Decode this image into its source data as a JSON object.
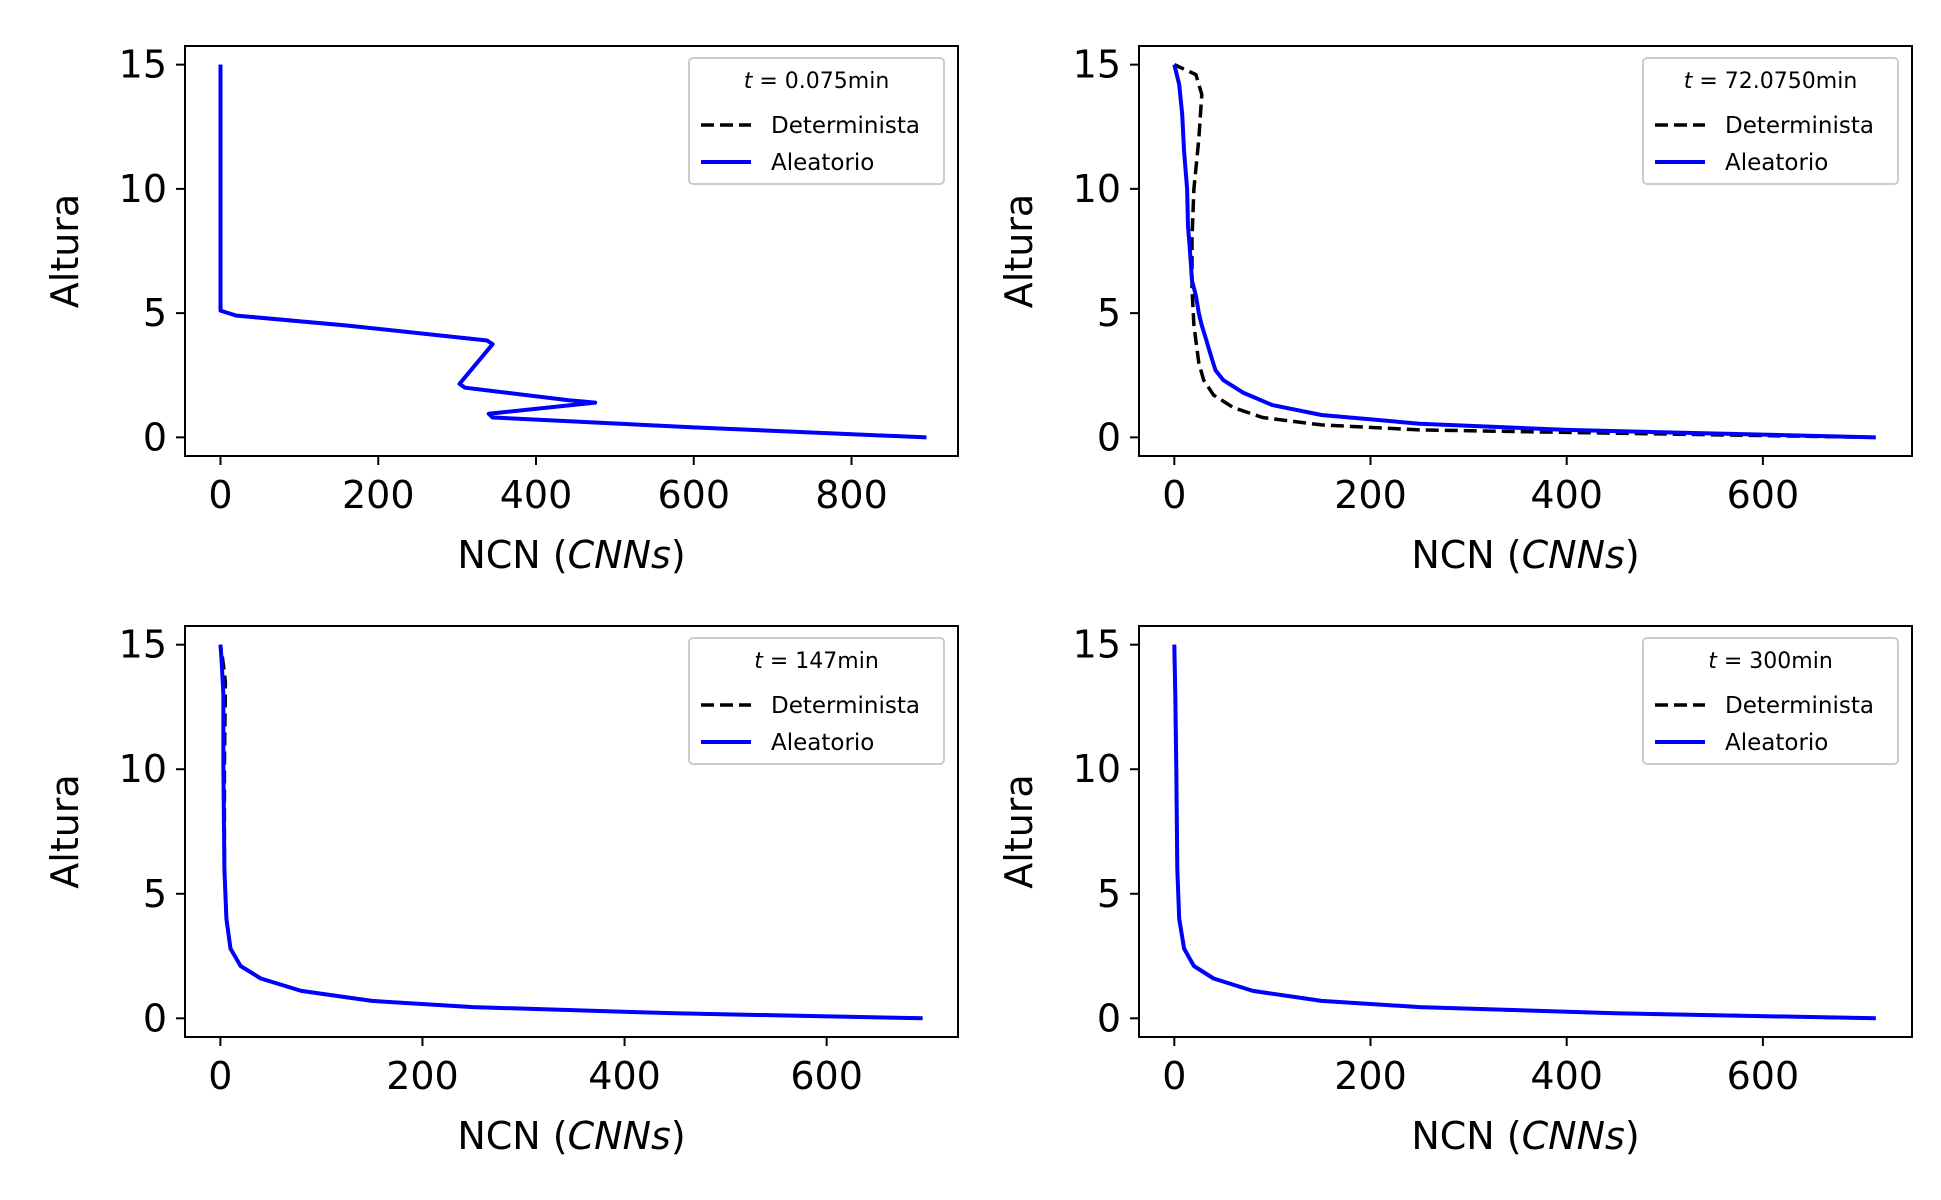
{
  "chart_data": [
    {
      "type": "line",
      "xlabel": "NCN",
      "xlabel_unit": "CNNs",
      "ylabel": "Altura",
      "xlim": [
        -45,
        935
      ],
      "ylim": [
        -0.75,
        15.75
      ],
      "xticks": [
        0,
        200,
        400,
        600,
        800
      ],
      "yticks": [
        0,
        5,
        10,
        15
      ],
      "legend": {
        "title_var": "t",
        "title_rest": " = 0.075min",
        "placement": "top-right"
      },
      "series": [
        {
          "name": "Determinista",
          "color": "#000000",
          "style": "dashed",
          "points": [
            [
              895,
              0
            ],
            [
              600,
              0.4
            ],
            [
              345,
              0.8
            ],
            [
              340,
              0.95
            ],
            [
              475,
              1.4
            ],
            [
              440,
              1.5
            ],
            [
              310,
              2.0
            ],
            [
              303,
              2.15
            ],
            [
              345,
              3.75
            ],
            [
              338,
              3.9
            ],
            [
              160,
              4.5
            ],
            [
              20,
              4.9
            ],
            [
              0,
              5.1
            ],
            [
              0,
              6
            ],
            [
              0,
              10
            ],
            [
              0,
              15
            ]
          ]
        },
        {
          "name": "Aleatorio",
          "color": "#0000ff",
          "style": "solid",
          "points": [
            [
              895,
              0
            ],
            [
              600,
              0.4
            ],
            [
              345,
              0.8
            ],
            [
              340,
              0.95
            ],
            [
              475,
              1.4
            ],
            [
              440,
              1.5
            ],
            [
              310,
              2.0
            ],
            [
              303,
              2.15
            ],
            [
              345,
              3.75
            ],
            [
              338,
              3.9
            ],
            [
              160,
              4.5
            ],
            [
              20,
              4.9
            ],
            [
              0,
              5.1
            ],
            [
              0,
              6
            ],
            [
              0,
              10
            ],
            [
              0,
              15
            ]
          ]
        }
      ]
    },
    {
      "type": "line",
      "xlabel": "NCN",
      "xlabel_unit": "CNNs",
      "ylabel": "Altura",
      "xlim": [
        -36,
        752
      ],
      "ylim": [
        -0.75,
        15.75
      ],
      "xticks": [
        0,
        200,
        400,
        600
      ],
      "yticks": [
        0,
        5,
        10,
        15
      ],
      "legend": {
        "title_var": "t",
        "title_rest": " = 72.0750min",
        "placement": "top-right"
      },
      "series": [
        {
          "name": "Determinista",
          "color": "#000000",
          "style": "dashed",
          "points": [
            [
              715,
              0
            ],
            [
              400,
              0.2
            ],
            [
              250,
              0.3
            ],
            [
              150,
              0.5
            ],
            [
              90,
              0.8
            ],
            [
              60,
              1.2
            ],
            [
              40,
              1.7
            ],
            [
              30,
              2.3
            ],
            [
              25,
              3.0
            ],
            [
              20,
              4.5
            ],
            [
              18,
              6.0
            ],
            [
              18,
              8.0
            ],
            [
              20,
              10.0
            ],
            [
              25,
              12.0
            ],
            [
              28,
              13.8
            ],
            [
              22,
              14.6
            ],
            [
              0,
              15
            ]
          ]
        },
        {
          "name": "Aleatorio",
          "color": "#0000ff",
          "style": "solid",
          "points": [
            [
              715,
              0
            ],
            [
              400,
              0.3
            ],
            [
              250,
              0.55
            ],
            [
              150,
              0.9
            ],
            [
              100,
              1.3
            ],
            [
              70,
              1.8
            ],
            [
              50,
              2.3
            ],
            [
              42,
              2.7
            ],
            [
              38,
              3.2
            ],
            [
              35,
              3.6
            ],
            [
              32,
              4.0
            ],
            [
              28,
              4.5
            ],
            [
              25,
              5.0
            ],
            [
              22,
              5.7
            ],
            [
              18,
              6.3
            ],
            [
              16,
              7.5
            ],
            [
              14,
              8.5
            ],
            [
              13,
              10.0
            ],
            [
              10,
              11.5
            ],
            [
              8,
              13.0
            ],
            [
              5,
              14.2
            ],
            [
              0,
              15
            ]
          ]
        }
      ]
    },
    {
      "type": "line",
      "xlabel": "NCN",
      "xlabel_unit": "CNNs",
      "ylabel": "Altura",
      "xlim": [
        -35,
        730
      ],
      "ylim": [
        -0.75,
        15.75
      ],
      "xticks": [
        0,
        200,
        400,
        600
      ],
      "yticks": [
        0,
        5,
        10,
        15
      ],
      "legend": {
        "title_var": "t",
        "title_rest": " = 147min",
        "placement": "top-right"
      },
      "series": [
        {
          "name": "Determinista",
          "color": "#000000",
          "style": "dashed",
          "points": [
            [
              695,
              0
            ],
            [
              450,
              0.2
            ],
            [
              250,
              0.45
            ],
            [
              150,
              0.7
            ],
            [
              80,
              1.1
            ],
            [
              40,
              1.6
            ],
            [
              20,
              2.1
            ],
            [
              10,
              2.8
            ],
            [
              6,
              4
            ],
            [
              4,
              6
            ],
            [
              4,
              10
            ],
            [
              5,
              13.5
            ],
            [
              2,
              14.5
            ],
            [
              0,
              15
            ]
          ]
        },
        {
          "name": "Aleatorio",
          "color": "#0000ff",
          "style": "solid",
          "points": [
            [
              695,
              0
            ],
            [
              450,
              0.2
            ],
            [
              250,
              0.45
            ],
            [
              150,
              0.7
            ],
            [
              80,
              1.1
            ],
            [
              40,
              1.6
            ],
            [
              20,
              2.1
            ],
            [
              10,
              2.8
            ],
            [
              6,
              4
            ],
            [
              4,
              6
            ],
            [
              3,
              10
            ],
            [
              3,
              13
            ],
            [
              1,
              14.5
            ],
            [
              0,
              15
            ]
          ]
        }
      ]
    },
    {
      "type": "line",
      "xlabel": "NCN",
      "xlabel_unit": "CNNs",
      "ylabel": "Altura",
      "xlim": [
        -36,
        752
      ],
      "ylim": [
        -0.75,
        15.75
      ],
      "xticks": [
        0,
        200,
        400,
        600
      ],
      "yticks": [
        0,
        5,
        10,
        15
      ],
      "legend": {
        "title_var": "t",
        "title_rest": " = 300min",
        "placement": "top-right"
      },
      "series": [
        {
          "name": "Determinista",
          "color": "#000000",
          "style": "dashed",
          "points": [
            [
              715,
              0
            ],
            [
              450,
              0.2
            ],
            [
              250,
              0.45
            ],
            [
              150,
              0.7
            ],
            [
              80,
              1.1
            ],
            [
              40,
              1.6
            ],
            [
              20,
              2.1
            ],
            [
              10,
              2.8
            ],
            [
              5,
              4
            ],
            [
              3,
              6
            ],
            [
              2,
              10
            ],
            [
              1,
              13
            ],
            [
              0,
              15
            ]
          ]
        },
        {
          "name": "Aleatorio",
          "color": "#0000ff",
          "style": "solid",
          "points": [
            [
              715,
              0
            ],
            [
              450,
              0.2
            ],
            [
              250,
              0.45
            ],
            [
              150,
              0.7
            ],
            [
              80,
              1.1
            ],
            [
              40,
              1.6
            ],
            [
              20,
              2.1
            ],
            [
              10,
              2.8
            ],
            [
              5,
              4
            ],
            [
              3,
              6
            ],
            [
              2,
              10
            ],
            [
              1,
              13
            ],
            [
              0,
              15
            ]
          ]
        }
      ]
    }
  ]
}
